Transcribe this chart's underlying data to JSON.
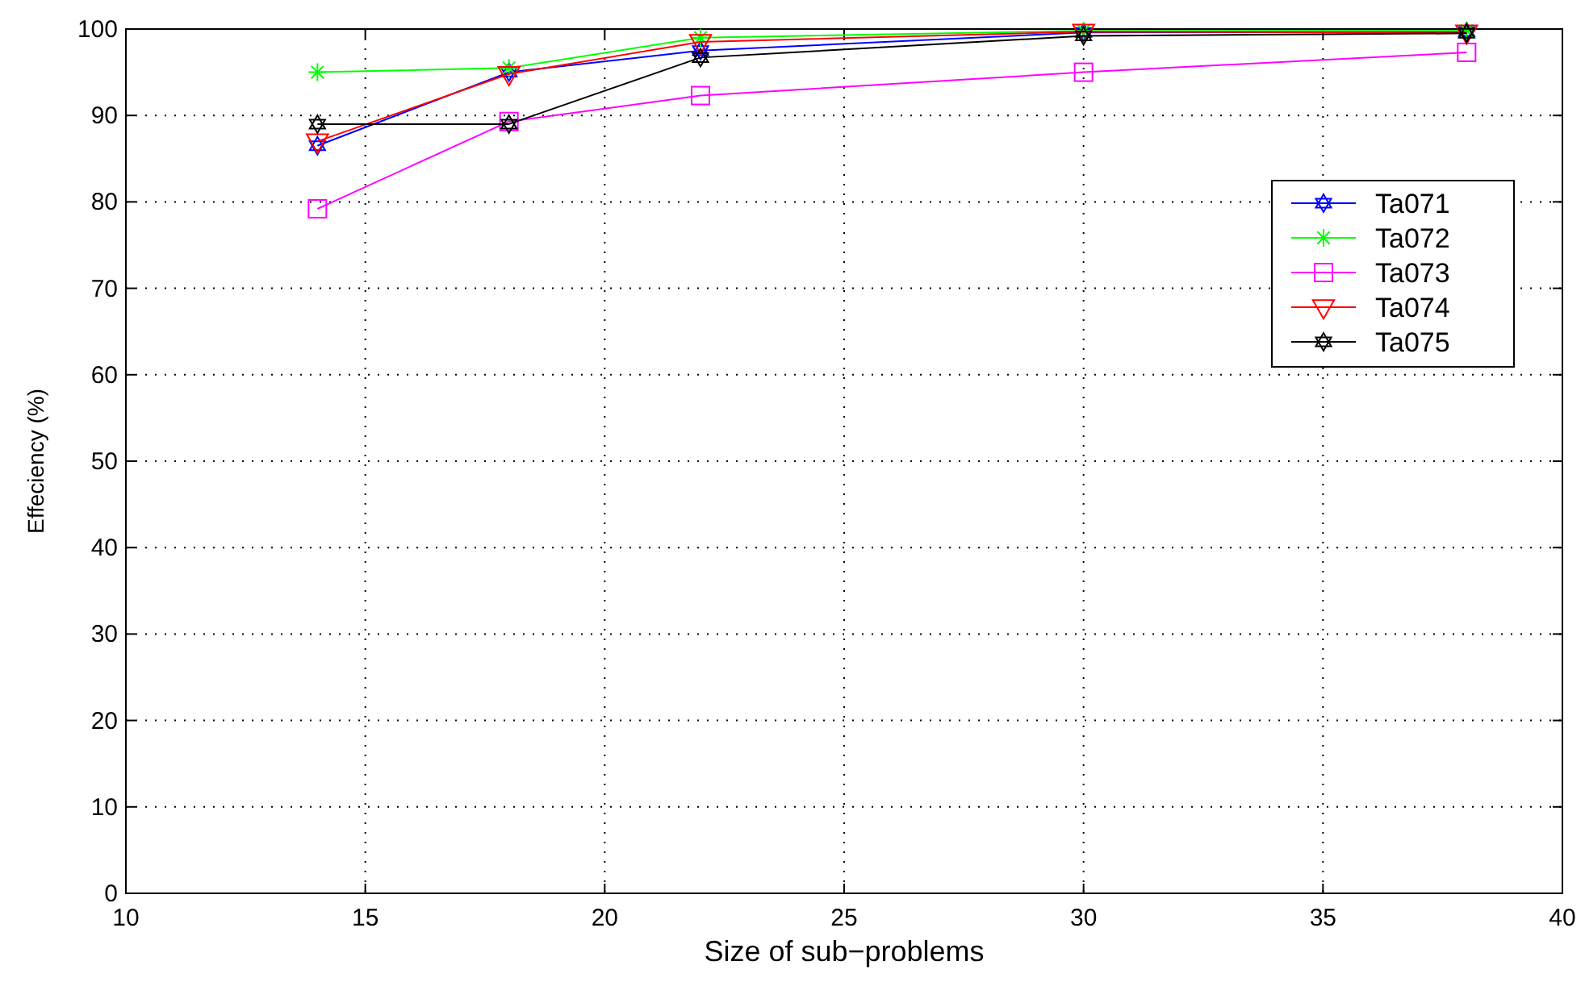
{
  "chart_data": {
    "type": "line",
    "xlabel": "Size of sub−problems",
    "ylabel": "Effeciency (%)",
    "x": [
      14,
      18,
      22,
      30,
      38
    ],
    "series": [
      {
        "name": "Ta071",
        "color": "#0000ff",
        "marker": "star",
        "values": [
          86.5,
          95,
          97.5,
          99.6,
          99.7
        ]
      },
      {
        "name": "Ta072",
        "color": "#00ff00",
        "marker": "cross",
        "values": [
          95,
          95.5,
          99,
          99.8,
          99.8
        ]
      },
      {
        "name": "Ta073",
        "color": "#ff00ff",
        "marker": "square",
        "values": [
          79.2,
          89.3,
          92.3,
          95,
          97.3
        ]
      },
      {
        "name": "Ta074",
        "color": "#ff0000",
        "marker": "triangle",
        "values": [
          87,
          94.8,
          98.5,
          99.7,
          99.6
        ]
      },
      {
        "name": "Ta075",
        "color": "#000000",
        "marker": "star",
        "values": [
          89,
          89,
          96.7,
          99.2,
          99.5
        ]
      }
    ],
    "xlim": [
      10,
      40
    ],
    "xticks": [
      10,
      15,
      20,
      25,
      30,
      35,
      40
    ],
    "ylim": [
      0,
      100
    ],
    "yticks": [
      0,
      10,
      20,
      30,
      40,
      50,
      60,
      70,
      80,
      90,
      100
    ],
    "grid": true,
    "legend": "right",
    "line_style": "solid"
  }
}
